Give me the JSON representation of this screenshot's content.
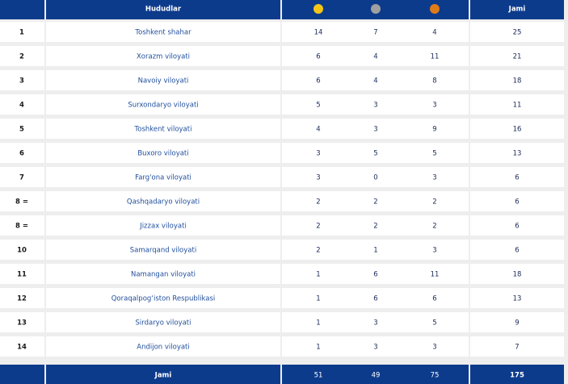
{
  "table": {
    "header": [
      "Hududlar",
      "Jami"
    ],
    "rows": [
      [
        "1",
        "Toshkent shahar",
        14,
        7,
        4,
        25
      ],
      [
        "2",
        "Xorazm viloyati",
        6,
        4,
        11,
        21
      ],
      [
        "3",
        "Navoiy viloyati",
        6,
        4,
        8,
        18
      ],
      [
        "4",
        "Surxondaryo viloyati",
        5,
        3,
        3,
        11
      ],
      [
        "5",
        "Toshkent viloyati",
        4,
        3,
        9,
        16
      ],
      [
        "6",
        "Buxoro viloyati",
        3,
        5,
        5,
        13
      ],
      [
        "7",
        "Farg'ona viloyati",
        3,
        0,
        3,
        6
      ],
      [
        "8 =",
        "Qashqadaryo viloyati",
        2,
        2,
        2,
        6
      ],
      [
        "8 =",
        "Jizzax viloyati",
        2,
        2,
        2,
        6
      ],
      [
        "10",
        "Samarqand viloyati",
        2,
        1,
        3,
        6
      ],
      [
        "11",
        "Namangan viloyati",
        1,
        6,
        11,
        18
      ],
      [
        "12",
        "Qoraqalpog‘iston Respublikasi",
        1,
        6,
        6,
        13
      ],
      [
        "13",
        "Sirdaryo viloyati",
        1,
        3,
        5,
        9
      ],
      [
        "14",
        "Andijon viloyati",
        1,
        3,
        3,
        7
      ]
    ],
    "footer": [
      "Jami",
      51,
      49,
      75,
      175
    ]
  }
}
